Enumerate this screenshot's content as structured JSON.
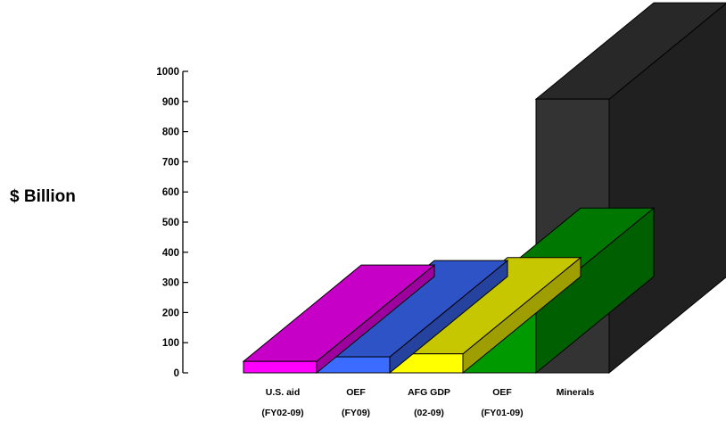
{
  "chart_data": {
    "type": "bar",
    "ylabel": "$ Billion",
    "ylim": [
      0,
      1000
    ],
    "yticks": [
      "0",
      "100",
      "200",
      "300",
      "400",
      "500",
      "600",
      "700",
      "800",
      "900",
      "1000"
    ],
    "categories": [
      {
        "line1": "U.S. aid",
        "line2": "(FY02-09)",
        "value": 38,
        "color": "#FF00FF"
      },
      {
        "line1": "OEF",
        "line2": "(FY09)",
        "value": 53,
        "color": "#3B6BFF"
      },
      {
        "line1": "AFG GDP",
        "line2": "(02-09)",
        "value": 63,
        "color": "#FFFF00"
      },
      {
        "line1": "OEF",
        "line2": "(FY01-09)",
        "value": 227,
        "color": "#009900"
      },
      {
        "line1": "Minerals",
        "line2": "",
        "value": 908,
        "color": "#333333"
      }
    ]
  }
}
